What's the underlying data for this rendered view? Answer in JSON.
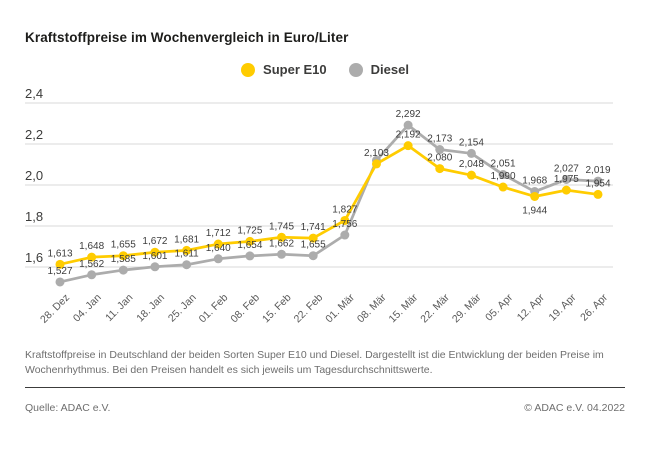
{
  "title": "Kraftstoffpreise im Wochenvergleich in Euro/Liter",
  "chart_data": {
    "type": "line",
    "unit": "Euro/Liter",
    "title": "Kraftstoffpreise im Wochenvergleich in Euro/Liter",
    "legend_position": "top-center",
    "grid": "horizontal",
    "ylim": [
      1.45,
      2.45
    ],
    "y_ticks": [
      {
        "label": "2,4",
        "value": 2.4
      },
      {
        "label": "2,2",
        "value": 2.2
      },
      {
        "label": "2,0",
        "value": 2.0
      },
      {
        "label": "1,8",
        "value": 1.8
      },
      {
        "label": "1,6",
        "value": 1.6
      }
    ],
    "categories": [
      "28. Dez",
      "04. Jan",
      "11. Jan",
      "18. Jan",
      "25. Jan",
      "01. Feb",
      "08. Feb",
      "15. Feb",
      "22. Feb",
      "01. Mär",
      "08. Mär",
      "15. Mär",
      "22. Mär",
      "29. Mär",
      "05. Apr",
      "12. Apr",
      "19. Apr",
      "26. Apr"
    ],
    "series": [
      {
        "name": "Super E10",
        "color": "#FFCC00",
        "values": [
          1.613,
          1.648,
          1.655,
          1.672,
          1.681,
          1.712,
          1.725,
          1.745,
          1.741,
          1.827,
          2.103,
          2.192,
          2.08,
          2.048,
          1.99,
          1.944,
          1.975,
          1.954
        ],
        "labels": [
          "1,613",
          "1,648",
          "1,655",
          "1,672",
          "1,681",
          "1,712",
          "1,725",
          "1,745",
          "1,741",
          "1,827",
          "2,103",
          "2,192",
          "2,080",
          "2,048",
          "1,990",
          "1,944",
          "1,975",
          "1,954"
        ]
      },
      {
        "name": "Diesel",
        "color": "#ACACAC",
        "values": [
          1.527,
          1.562,
          1.585,
          1.601,
          1.611,
          1.64,
          1.654,
          1.662,
          1.655,
          1.756,
          2.12,
          2.292,
          2.173,
          2.154,
          2.051,
          1.968,
          2.027,
          2.019
        ],
        "labels": [
          "1,527",
          "1,562",
          "1,585",
          "1,601",
          "1,611",
          "1,640",
          "1,654",
          "1,662",
          "1,655",
          "1,756",
          "",
          "2,292",
          "2,173",
          "2,154",
          "2,051",
          "1,968",
          "2,027",
          "2,019"
        ]
      }
    ],
    "note": "Diesel point on 08. Mär is plotted but carries no visible label; its value (2.12) is estimated from the plotted position."
  },
  "footnote": "Kraftstoffpreise in Deutschland der beiden Sorten Super E10 und Diesel. Dargestellt ist die Entwicklung der beiden Preise im Wochenrhythmus. Bei den Preisen handelt es sich jeweils um Tagesdurchschnittswerte.",
  "source": "Quelle: ADAC e.V.",
  "copyright": "© ADAC e.V. 04.2022"
}
